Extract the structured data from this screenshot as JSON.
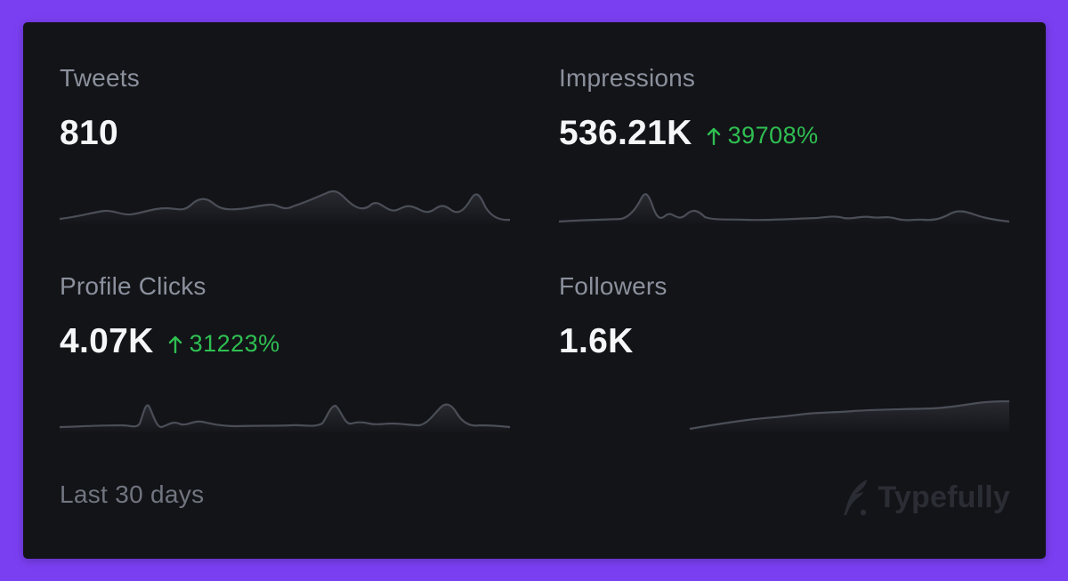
{
  "metrics": [
    {
      "label": "Tweets",
      "value": "810",
      "change": ""
    },
    {
      "label": "Impressions",
      "value": "536.21K",
      "change": "39708%"
    },
    {
      "label": "Profile Clicks",
      "value": "4.07K",
      "change": "31223%"
    },
    {
      "label": "Followers",
      "value": "1.6K",
      "change": ""
    }
  ],
  "footer": {
    "period": "Last 30 days"
  },
  "brand": {
    "name": "Typefully",
    "icon": "quill-icon"
  },
  "colors": {
    "background": "#7b3ff2",
    "card": "#131418",
    "value": "#f5f6f8",
    "label": "#8b919c",
    "positive": "#2fbf52",
    "sparkline": "#4a4e57"
  }
}
